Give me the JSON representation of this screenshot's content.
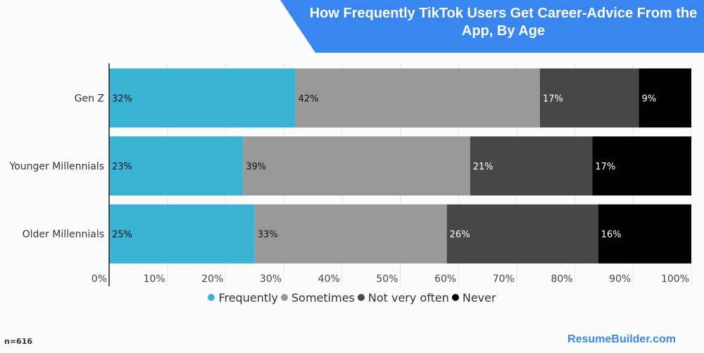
{
  "chart_data": {
    "type": "bar",
    "orientation": "horizontal",
    "stacked": true,
    "title": "How Frequently TikTok Users Get Career-Advice From the App, By Age",
    "categories": [
      "Gen Z",
      "Younger Millennials",
      "Older Millennials"
    ],
    "series": [
      {
        "name": "Frequently",
        "color": "#3ab3d4",
        "values": [
          32,
          23,
          25
        ]
      },
      {
        "name": "Sometimes",
        "color": "#999999",
        "values": [
          42,
          39,
          33
        ]
      },
      {
        "name": "Not very often",
        "color": "#474747",
        "values": [
          17,
          21,
          26
        ]
      },
      {
        "name": "Never",
        "color": "#000000",
        "values": [
          9,
          17,
          16
        ]
      }
    ],
    "xlim": [
      0,
      100
    ],
    "xticks": [
      "0%",
      "10%",
      "20%",
      "30%",
      "40%",
      "50%",
      "60%",
      "70%",
      "80%",
      "90%",
      "100%"
    ],
    "grid": true,
    "legend": "bottom"
  },
  "note": "n=616",
  "brand": "ResumeBuilder.com",
  "banner_color": "#3a86f0"
}
